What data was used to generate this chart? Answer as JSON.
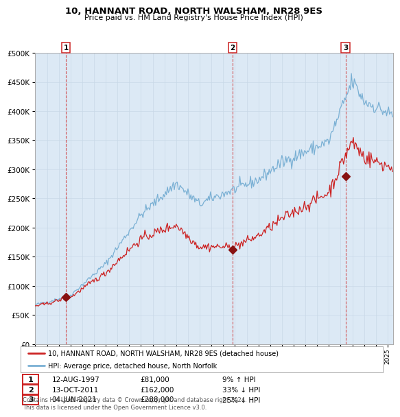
{
  "title": "10, HANNANT ROAD, NORTH WALSHAM, NR28 9ES",
  "subtitle": "Price paid vs. HM Land Registry's House Price Index (HPI)",
  "bg_color": "#dce9f5",
  "hpi_color": "#7ab0d4",
  "price_color": "#cc2222",
  "grid_color": "#c8d8e8",
  "transactions": [
    {
      "t": 1997.614,
      "price": 81000,
      "label": "1"
    },
    {
      "t": 2011.789,
      "price": 162000,
      "label": "2"
    },
    {
      "t": 2021.422,
      "price": 288000,
      "label": "3"
    }
  ],
  "legend_entries": [
    "10, HANNANT ROAD, NORTH WALSHAM, NR28 9ES (detached house)",
    "HPI: Average price, detached house, North Norfolk"
  ],
  "table_rows": [
    {
      "num": "1",
      "date": "12-AUG-1997",
      "price": "£81,000",
      "hpi": "9% ↑ HPI"
    },
    {
      "num": "2",
      "date": "13-OCT-2011",
      "price": "£162,000",
      "hpi": "33% ↓ HPI"
    },
    {
      "num": "3",
      "date": "04-JUN-2021",
      "price": "£288,000",
      "hpi": "25% ↓ HPI"
    }
  ],
  "footer": "Contains HM Land Registry data © Crown copyright and database right 2024.\nThis data is licensed under the Open Government Licence v3.0.",
  "ylim": [
    0,
    500000
  ],
  "yticks": [
    0,
    50000,
    100000,
    150000,
    200000,
    250000,
    300000,
    350000,
    400000,
    450000,
    500000
  ],
  "xstart": 1995.0,
  "xend": 2025.5
}
